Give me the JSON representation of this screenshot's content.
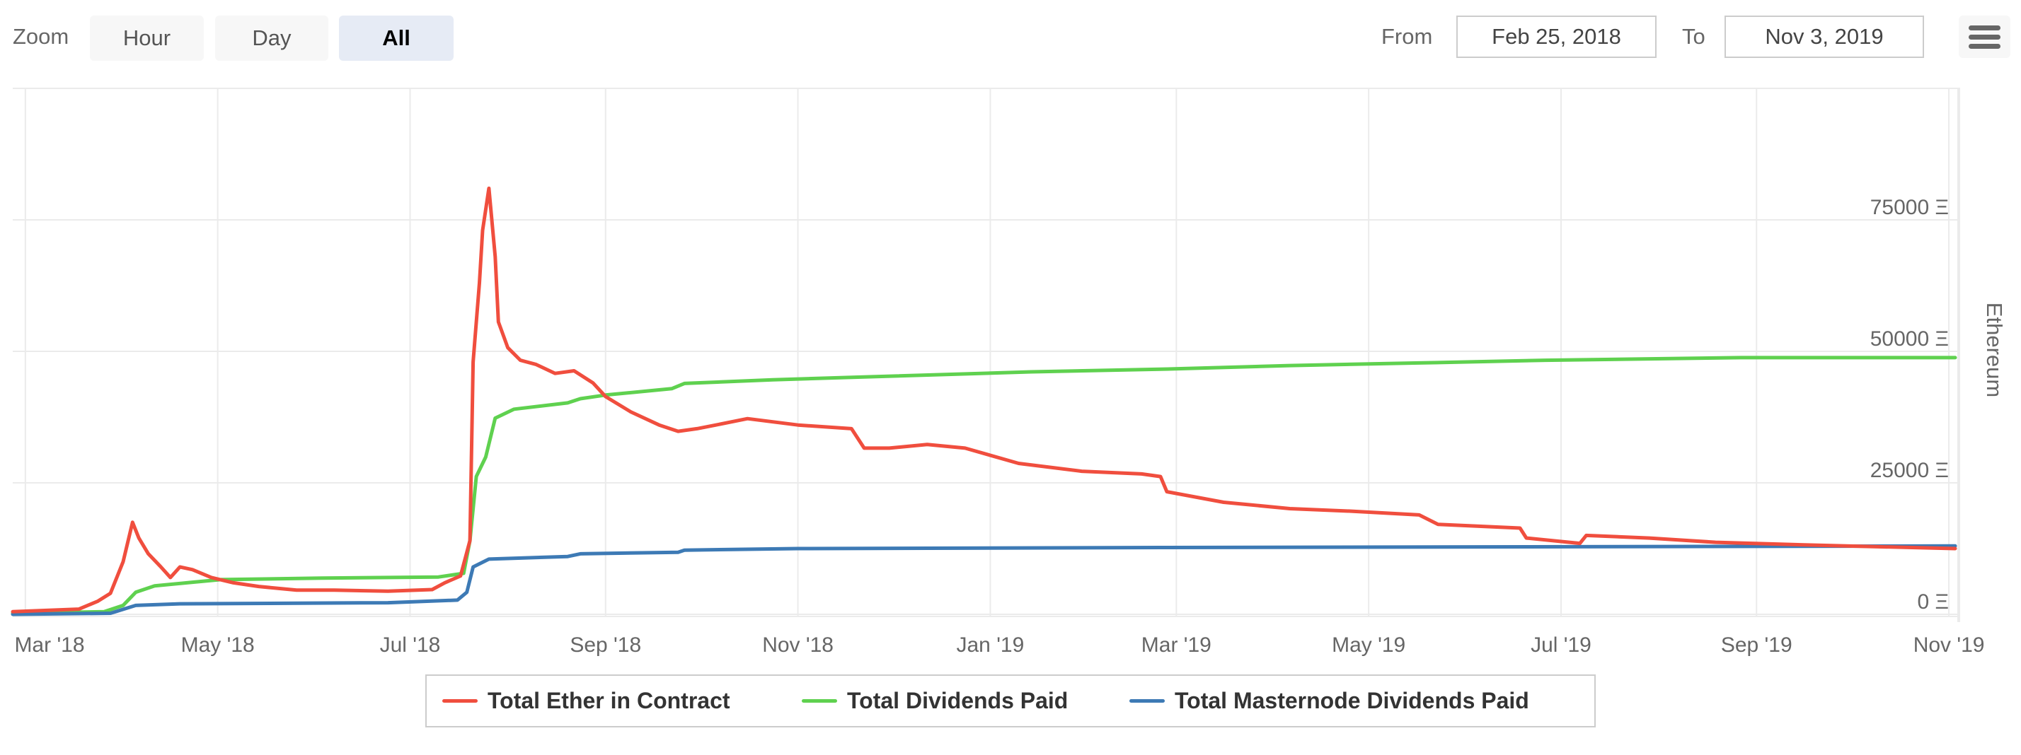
{
  "toolbar": {
    "zoom_label": "Zoom",
    "zoom_buttons": [
      {
        "label": "Hour",
        "active": false
      },
      {
        "label": "Day",
        "active": false
      },
      {
        "label": "All",
        "active": true
      }
    ],
    "from_label": "From",
    "from_value": "Feb 25, 2018",
    "to_label": "To",
    "to_value": "Nov 3, 2019",
    "menu_icon": "hamburger-menu-icon"
  },
  "chart_data": {
    "type": "line",
    "title": "",
    "xlabel": "",
    "ylabel": "Ethereum",
    "x_unit": "days since Feb 25, 2018",
    "x_range": [
      0,
      616
    ],
    "ylim": [
      0,
      100000
    ],
    "y_ticks": [
      {
        "value": 0,
        "label": "0 Ξ"
      },
      {
        "value": 25000,
        "label": "25000 Ξ"
      },
      {
        "value": 50000,
        "label": "50000 Ξ"
      },
      {
        "value": 75000,
        "label": "75000 Ξ"
      },
      {
        "value": 100000,
        "label": ""
      }
    ],
    "x_ticks": [
      {
        "day": 4,
        "label": "Mar '18"
      },
      {
        "day": 65,
        "label": "May '18"
      },
      {
        "day": 126,
        "label": "Jul '18"
      },
      {
        "day": 188,
        "label": "Sep '18"
      },
      {
        "day": 249,
        "label": "Nov '18"
      },
      {
        "day": 310,
        "label": "Jan '19"
      },
      {
        "day": 369,
        "label": "Mar '19"
      },
      {
        "day": 430,
        "label": "May '19"
      },
      {
        "day": 491,
        "label": "Jul '19"
      },
      {
        "day": 553,
        "label": "Sep '19"
      },
      {
        "day": 614,
        "label": "Nov '19"
      }
    ],
    "grid": true,
    "legend_position": "bottom-center",
    "series": [
      {
        "name": "Total Ether in Contract",
        "color": "#f04e3e",
        "points": [
          [
            0,
            500
          ],
          [
            21,
            1000
          ],
          [
            27,
            2500
          ],
          [
            31,
            4000
          ],
          [
            35,
            10000
          ],
          [
            38,
            17500
          ],
          [
            40,
            14500
          ],
          [
            43,
            11500
          ],
          [
            47,
            9000
          ],
          [
            50,
            7000
          ],
          [
            53,
            9000
          ],
          [
            57,
            8500
          ],
          [
            63,
            7000
          ],
          [
            70,
            6000
          ],
          [
            78,
            5300
          ],
          [
            90,
            4600
          ],
          [
            102,
            4600
          ],
          [
            119,
            4400
          ],
          [
            133,
            4700
          ],
          [
            137,
            6000
          ],
          [
            142,
            7300
          ],
          [
            145,
            14000
          ],
          [
            146,
            48000
          ],
          [
            148,
            63000
          ],
          [
            149,
            73000
          ],
          [
            151,
            81000
          ],
          [
            153,
            68000
          ],
          [
            154,
            55600
          ],
          [
            157,
            50700
          ],
          [
            161,
            48300
          ],
          [
            166,
            47500
          ],
          [
            172,
            45800
          ],
          [
            178,
            46300
          ],
          [
            184,
            44000
          ],
          [
            188,
            41400
          ],
          [
            196,
            38500
          ],
          [
            205,
            36000
          ],
          [
            211,
            34800
          ],
          [
            217,
            35300
          ],
          [
            223,
            36000
          ],
          [
            233,
            37200
          ],
          [
            249,
            36000
          ],
          [
            266,
            35300
          ],
          [
            270,
            31600
          ],
          [
            278,
            31600
          ],
          [
            290,
            32300
          ],
          [
            302,
            31600
          ],
          [
            319,
            28700
          ],
          [
            339,
            27200
          ],
          [
            358,
            26700
          ],
          [
            364,
            26200
          ],
          [
            366,
            23300
          ],
          [
            384,
            21300
          ],
          [
            405,
            20100
          ],
          [
            425,
            19600
          ],
          [
            446,
            18900
          ],
          [
            452,
            17100
          ],
          [
            478,
            16400
          ],
          [
            480,
            14500
          ],
          [
            497,
            13500
          ],
          [
            499,
            15000
          ],
          [
            519,
            14500
          ],
          [
            540,
            13700
          ],
          [
            568,
            13200
          ],
          [
            616,
            12500
          ]
        ]
      },
      {
        "name": "Total Dividends Paid",
        "color": "#5fd14f",
        "points": [
          [
            0,
            200
          ],
          [
            29,
            500
          ],
          [
            35,
            1700
          ],
          [
            39,
            4200
          ],
          [
            45,
            5400
          ],
          [
            57,
            6100
          ],
          [
            66,
            6600
          ],
          [
            98,
            6900
          ],
          [
            135,
            7100
          ],
          [
            143,
            7800
          ],
          [
            145,
            14000
          ],
          [
            147,
            26200
          ],
          [
            150,
            29900
          ],
          [
            153,
            37300
          ],
          [
            159,
            39000
          ],
          [
            176,
            40200
          ],
          [
            180,
            41000
          ],
          [
            188,
            41700
          ],
          [
            209,
            42900
          ],
          [
            213,
            43900
          ],
          [
            241,
            44600
          ],
          [
            268,
            45100
          ],
          [
            323,
            46100
          ],
          [
            364,
            46600
          ],
          [
            405,
            47300
          ],
          [
            446,
            47800
          ],
          [
            486,
            48300
          ],
          [
            548,
            48800
          ],
          [
            616,
            48800
          ]
        ]
      },
      {
        "name": "Total Masternode Dividends Paid",
        "color": "#3d7ab5",
        "points": [
          [
            0,
            0
          ],
          [
            31,
            200
          ],
          [
            39,
            1700
          ],
          [
            53,
            2000
          ],
          [
            119,
            2200
          ],
          [
            141,
            2700
          ],
          [
            144,
            4200
          ],
          [
            146,
            9000
          ],
          [
            151,
            10500
          ],
          [
            176,
            11000
          ],
          [
            180,
            11500
          ],
          [
            211,
            11800
          ],
          [
            213,
            12200
          ],
          [
            249,
            12500
          ],
          [
            364,
            12700
          ],
          [
            616,
            13000
          ]
        ]
      }
    ]
  }
}
